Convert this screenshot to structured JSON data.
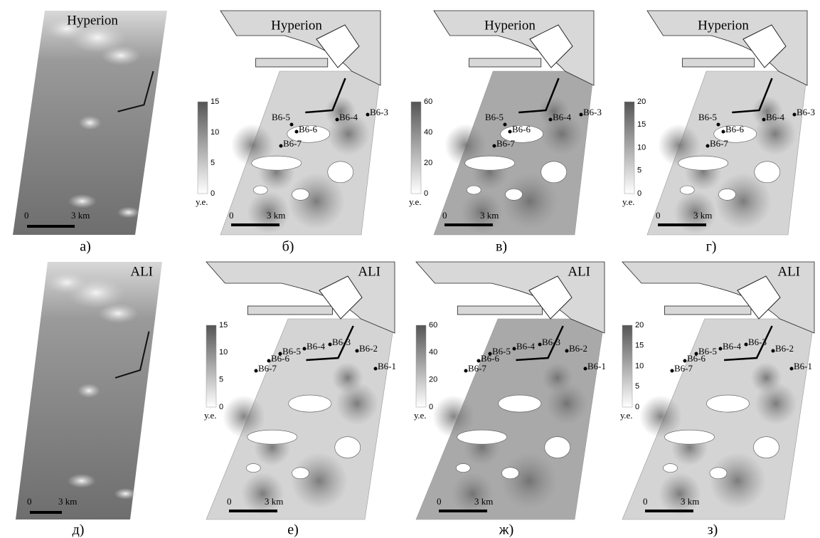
{
  "panels": [
    {
      "caption": "а)",
      "title": "Hyperion",
      "scale": {
        "start": "0",
        "end": "3 km"
      }
    },
    {
      "caption": "б)",
      "title": "Hyperion",
      "colorbar": {
        "ticks": [
          "15",
          "10",
          "5",
          "0"
        ],
        "unit": "у.е."
      },
      "scale": {
        "start": "0",
        "end": "3 km"
      },
      "stations": [
        "В6-5",
        "В6-4",
        "В6-3",
        "В6-6",
        "В6-7"
      ]
    },
    {
      "caption": "в)",
      "title": "Hyperion",
      "colorbar": {
        "ticks": [
          "60",
          "40",
          "20",
          "0"
        ],
        "unit": "у.е."
      },
      "scale": {
        "start": "0",
        "end": "3 km"
      },
      "stations": [
        "В6-5",
        "В6-4",
        "В6-3",
        "В6-6",
        "В6-7"
      ]
    },
    {
      "caption": "г)",
      "title": "Hyperion",
      "colorbar": {
        "ticks": [
          "20",
          "15",
          "10",
          "5",
          "0"
        ],
        "unit": "у.е."
      },
      "scale": {
        "start": "0",
        "end": "3 km"
      },
      "stations": [
        "В6-5",
        "В6-4",
        "В6-3",
        "В6-6",
        "В6-7"
      ]
    },
    {
      "caption": "д)",
      "title": "ALI",
      "scale": {
        "start": "0",
        "end": "3 km"
      }
    },
    {
      "caption": "е)",
      "title": "ALI",
      "colorbar": {
        "ticks": [
          "15",
          "10",
          "5",
          "0"
        ],
        "unit": "у.е."
      },
      "scale": {
        "start": "0",
        "end": "3 km"
      },
      "stations": [
        "В6-5",
        "В6-6",
        "В6-4",
        "В6-3",
        "В6-2",
        "В6-1",
        "В6-7"
      ]
    },
    {
      "caption": "ж)",
      "title": "ALI",
      "colorbar": {
        "ticks": [
          "60",
          "40",
          "20",
          "0"
        ],
        "unit": "у.е."
      },
      "scale": {
        "start": "0",
        "end": "3 km"
      },
      "stations": [
        "В6-5",
        "В6-6",
        "В6-4",
        "В6-3",
        "В6-2",
        "В6-1",
        "В6-7"
      ]
    },
    {
      "caption": "з)",
      "title": "ALI",
      "colorbar": {
        "ticks": [
          "20",
          "15",
          "10",
          "5",
          "0"
        ],
        "unit": "у.е."
      },
      "scale": {
        "start": "0",
        "end": "3 km"
      },
      "stations": [
        "В6-5",
        "В6-6",
        "В6-4",
        "В6-3",
        "В6-2",
        "В6-1",
        "В6-7"
      ]
    }
  ]
}
